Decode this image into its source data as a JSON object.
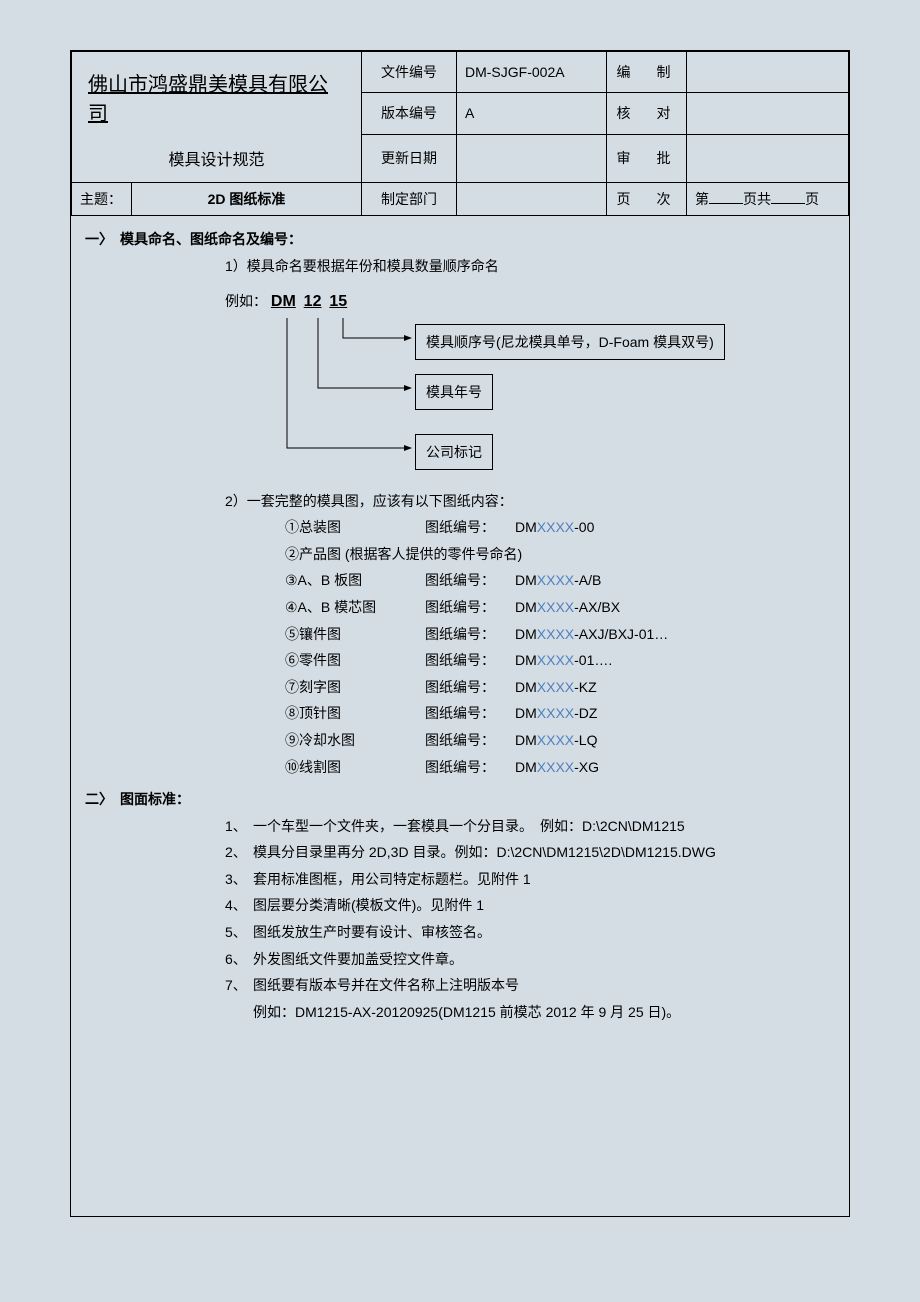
{
  "header": {
    "company": "佛山市鸿盛鼎美模具有限公司",
    "subtitle": "模具设计规范",
    "topic_label": "主题：",
    "topic_value": "2D 图纸标准",
    "rows": {
      "r1c1": "文件编号",
      "r1c2": "DM-SJGF-002A",
      "r1c3": "编　制",
      "r2c1": "版本编号",
      "r2c2": "A",
      "r2c3": "核　对",
      "r3c1": "更新日期",
      "r3c2": "",
      "r3c3": "审　批",
      "r4c1": "制定部门",
      "r4c2": "",
      "r4c3": "页　次"
    },
    "page_prefix": "第",
    "page_mid": "页共",
    "page_suffix": "页"
  },
  "sec1": {
    "head": "一〉　模具命名、图纸命名及编号：",
    "p1": "1）模具命名要根据年份和模具数量顺序命名",
    "ex_label": "例如：",
    "ex_parts": {
      "a": "DM",
      "b": "12",
      "c": "15"
    },
    "box1": "模具顺序号(尼龙模具单号，D-Foam 模具双号)",
    "box2": "模具年号",
    "box3": "公司标记",
    "p2": "2）一套完整的模具图，应该有以下图纸内容：",
    "drawings": [
      {
        "name": "①总装图",
        "lbl": "图纸编号：",
        "pre": "DM",
        "x": "XXXX",
        "suf": "-00"
      },
      {
        "name": "②产品图  (根据客人提供的零件号命名)",
        "lbl": "",
        "pre": "",
        "x": "",
        "suf": ""
      },
      {
        "name": "③A、B 板图",
        "lbl": "图纸编号：",
        "pre": "DM",
        "x": "XXXX",
        "suf": "-A/B"
      },
      {
        "name": "④A、B 模芯图",
        "lbl": "图纸编号：",
        "pre": "DM",
        "x": "XXXX",
        "suf": "-AX/BX"
      },
      {
        "name": "⑤镶件图",
        "lbl": "图纸编号：",
        "pre": "DM",
        "x": "XXXX",
        "suf": "-AXJ/BXJ-01…"
      },
      {
        "name": "⑥零件图",
        "lbl": "图纸编号：",
        "pre": "DM",
        "x": "XXXX",
        "suf": "-01…."
      },
      {
        "name": "⑦刻字图",
        "lbl": "图纸编号：",
        "pre": "DM",
        "x": "XXXX",
        "suf": "-KZ"
      },
      {
        "name": "⑧顶针图",
        "lbl": "图纸编号：",
        "pre": "DM",
        "x": "XXXX",
        "suf": "-DZ"
      },
      {
        "name": "⑨冷却水图",
        "lbl": "图纸编号：",
        "pre": "DM",
        "x": "XXXX",
        "suf": "-LQ"
      },
      {
        "name": "⑩线割图",
        "lbl": "图纸编号：",
        "pre": "DM",
        "x": "XXXX",
        "suf": "-XG"
      }
    ]
  },
  "sec2": {
    "head": "二〉　图面标准：",
    "items": [
      {
        "n": "1、",
        "t": "一个车型一个文件夹，一套模具一个分目录。　例如：D:\\2CN\\DM1215"
      },
      {
        "n": "2、",
        "t": "模具分目录里再分 2D,3D 目录。例如：D:\\2CN\\DM1215\\2D\\DM1215.DWG"
      },
      {
        "n": "3、",
        "t": "套用标准图框，用公司特定标题栏。见附件 1"
      },
      {
        "n": "4、",
        "t": "图层要分类清晰(模板文件)。见附件 1"
      },
      {
        "n": "5、",
        "t": "图纸发放生产时要有设计、审核签名。"
      },
      {
        "n": "6、",
        "t": "外发图纸文件要加盖受控文件章。"
      },
      {
        "n": "7、",
        "t": "图纸要有版本号并在文件名称上注明版本号"
      }
    ],
    "sub": "例如：DM1215-AX-20120925(DM1215 前模芯 2012 年 9 月 25 日)。"
  },
  "colors": {
    "blue": "#4f81bd",
    "bg": "#d4dde4",
    "border": "#000000"
  }
}
